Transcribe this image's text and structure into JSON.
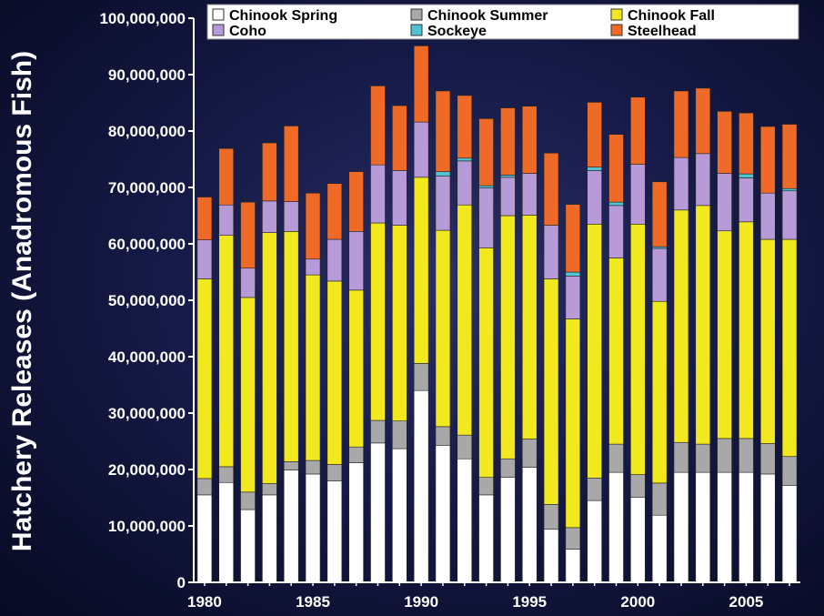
{
  "chart_data": {
    "type": "bar",
    "stacked": true,
    "title": "",
    "xlabel": "",
    "ylabel": "Hatchery Releases (Anadromous Fish)",
    "ylim": [
      0,
      100000000
    ],
    "yticks": [
      "0",
      "10,000,000",
      "20,000,000",
      "30,000,000",
      "40,000,000",
      "50,000,000",
      "60,000,000",
      "70,000,000",
      "80,000,000",
      "90,000,000",
      "100,000,000"
    ],
    "xticks": [
      "1980",
      "1985",
      "1990",
      "1995",
      "2000",
      "2005"
    ],
    "legend_position": "top",
    "grid": false,
    "categories": [
      1980,
      1981,
      1982,
      1983,
      1984,
      1985,
      1986,
      1987,
      1988,
      1989,
      1990,
      1991,
      1992,
      1993,
      1994,
      1995,
      1996,
      1997,
      1998,
      1999,
      2000,
      2001,
      2002,
      2003,
      2004,
      2005,
      2006,
      2007
    ],
    "series": [
      {
        "name": "Chinook Spring",
        "color": "#ffffff",
        "values": [
          15500000,
          17700000,
          12900000,
          15500000,
          19900000,
          19200000,
          18000000,
          21200000,
          24700000,
          23700000,
          34000000,
          24300000,
          21900000,
          15500000,
          18600000,
          20400000,
          9400000,
          5900000,
          14500000,
          19500000,
          15100000,
          11900000,
          19500000,
          19500000,
          19500000,
          19500000,
          19200000,
          17200000
        ]
      },
      {
        "name": "Chinook Summer",
        "color": "#a8a8a8",
        "values": [
          2900000,
          2800000,
          3100000,
          2000000,
          1500000,
          2400000,
          2900000,
          2800000,
          4000000,
          4900000,
          4800000,
          3300000,
          4200000,
          3100000,
          3300000,
          5000000,
          4400000,
          3800000,
          4000000,
          5000000,
          4000000,
          5700000,
          5300000,
          5000000,
          6000000,
          6000000,
          5400000,
          5100000
        ]
      },
      {
        "name": "Chinook Fall",
        "color": "#f2e81e",
        "values": [
          35400000,
          41000000,
          34500000,
          44500000,
          40800000,
          32900000,
          32500000,
          27800000,
          35000000,
          34700000,
          33000000,
          34800000,
          40800000,
          40700000,
          43100000,
          39700000,
          40000000,
          37000000,
          45000000,
          33000000,
          44400000,
          32200000,
          41200000,
          42300000,
          36800000,
          38400000,
          36200000,
          38500000
        ]
      },
      {
        "name": "Coho",
        "color": "#b79ad8",
        "values": [
          6900000,
          5400000,
          5200000,
          5600000,
          5300000,
          2800000,
          7400000,
          10400000,
          10300000,
          9700000,
          9800000,
          9600000,
          7800000,
          10600000,
          6800000,
          7400000,
          9500000,
          7600000,
          9500000,
          9300000,
          10600000,
          9400000,
          9300000,
          9200000,
          10200000,
          7800000,
          8200000,
          8600000
        ]
      },
      {
        "name": "Sockeye",
        "color": "#4fc3d1",
        "values": [
          0,
          0,
          0,
          0,
          0,
          0,
          0,
          0,
          0,
          0,
          0,
          800000,
          500000,
          400000,
          400000,
          0,
          0,
          700000,
          600000,
          600000,
          0,
          300000,
          0,
          0,
          0,
          700000,
          0,
          400000
        ]
      },
      {
        "name": "Steelhead",
        "color": "#ee6a26",
        "values": [
          7600000,
          10000000,
          11700000,
          10300000,
          13400000,
          11700000,
          9900000,
          10600000,
          14000000,
          11500000,
          13500000,
          14300000,
          11100000,
          11900000,
          11900000,
          11900000,
          12800000,
          12000000,
          11500000,
          12000000,
          11900000,
          11500000,
          11800000,
          11600000,
          11000000,
          10800000,
          11800000,
          11400000
        ]
      }
    ]
  }
}
